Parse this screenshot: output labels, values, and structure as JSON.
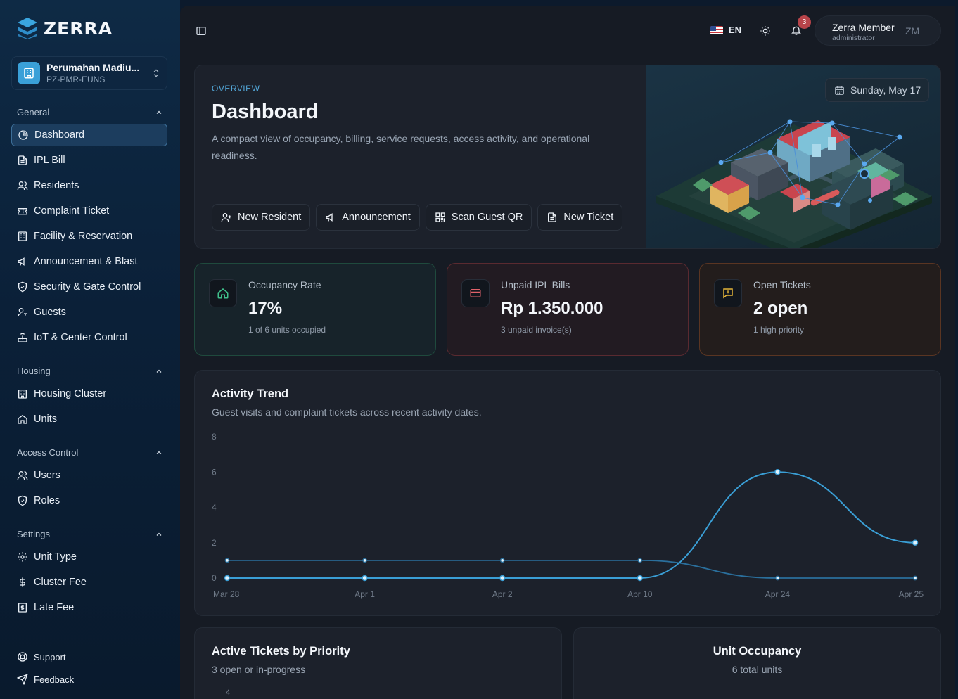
{
  "brand": {
    "name": "ZERRA"
  },
  "tenant": {
    "name": "Perumahan Madiu...",
    "code": "PZ-PMR-EUNS"
  },
  "nav": {
    "general": {
      "title": "General",
      "items": [
        "Dashboard",
        "IPL Bill",
        "Residents",
        "Complaint Ticket",
        "Facility & Reservation",
        "Announcement & Blast",
        "Security & Gate Control",
        "Guests",
        "IoT & Center Control"
      ]
    },
    "housing": {
      "title": "Housing",
      "items": [
        "Housing Cluster",
        "Units"
      ]
    },
    "access": {
      "title": "Access Control",
      "items": [
        "Users",
        "Roles"
      ]
    },
    "settings": {
      "title": "Settings",
      "items": [
        "Unit Type",
        "Cluster Fee",
        "Late Fee"
      ]
    },
    "footer": [
      "Support",
      "Feedback"
    ],
    "active": "Dashboard"
  },
  "topbar": {
    "lang": "EN",
    "notifications": "3",
    "user_name": "Zerra Member",
    "user_role": "administrator",
    "user_initials": "ZM"
  },
  "hero": {
    "kicker": "OVERVIEW",
    "title": "Dashboard",
    "description": "A compact view of occupancy, billing, service requests, access activity, and operational readiness.",
    "date": "Sunday, May 17",
    "actions": [
      "New Resident",
      "Announcement",
      "Scan Guest QR",
      "New Ticket"
    ]
  },
  "stats": [
    {
      "label": "Occupancy Rate",
      "value": "17%",
      "sub": "1 of 6 units occupied",
      "color": "#3fbf8a"
    },
    {
      "label": "Unpaid IPL Bills",
      "value": "Rp 1.350.000",
      "sub": "3 unpaid invoice(s)",
      "color": "#e0626a"
    },
    {
      "label": "Open Tickets",
      "value": "2 open",
      "sub": "1 high priority",
      "color": "#e6b53a"
    }
  ],
  "trend": {
    "title": "Activity Trend",
    "subtitle": "Guest visits and complaint tickets across recent activity dates."
  },
  "chart_data": {
    "type": "line",
    "x": [
      "Mar 28",
      "Apr 1",
      "Apr 2",
      "Apr 10",
      "Apr 24",
      "Apr 25"
    ],
    "ylim": [
      0,
      8
    ],
    "yticks": [
      0,
      2,
      4,
      6,
      8
    ],
    "grid": false,
    "series": [
      {
        "values": [
          0,
          0,
          0,
          0,
          6,
          2
        ],
        "color": "#3a9fd6"
      },
      {
        "values": [
          1,
          1,
          1,
          1,
          0,
          0
        ],
        "color": "#2a6f9c"
      }
    ]
  },
  "tickets_card": {
    "title": "Active Tickets by Priority",
    "subtitle": "3 open or in-progress",
    "first_tick": "4"
  },
  "occupancy_card": {
    "title": "Unit Occupancy",
    "subtitle": "6 total units"
  }
}
